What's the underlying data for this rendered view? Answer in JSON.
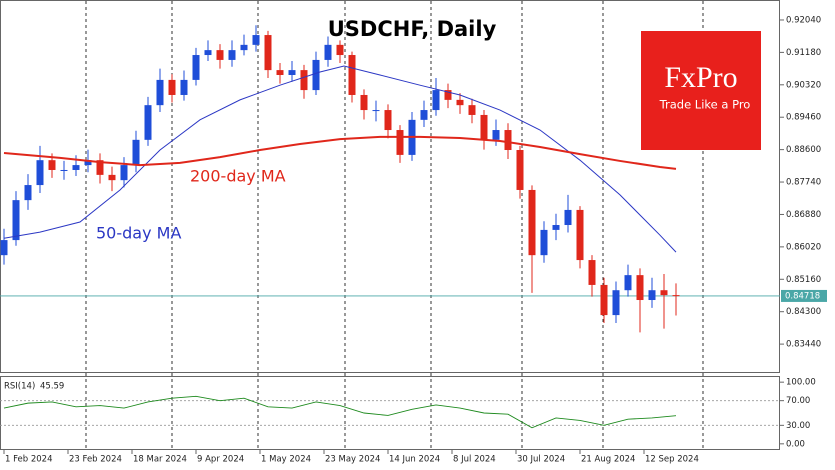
{
  "chart_data": {
    "type": "candlestick",
    "title": "USDCHF, Daily",
    "up_color": "#1f4ed8",
    "down_color": "#e0271b",
    "x": [
      0,
      3,
      6,
      9,
      12,
      15,
      18,
      21,
      24,
      27,
      30,
      33,
      36,
      39,
      42,
      45,
      48,
      51,
      54,
      57,
      60,
      63,
      66,
      69,
      72,
      75,
      78,
      81,
      84,
      87,
      90,
      93,
      96,
      99,
      102,
      105,
      108,
      111,
      114,
      117,
      120,
      123,
      126,
      129,
      132,
      135,
      138,
      141,
      144,
      147,
      150,
      153,
      156,
      159,
      162,
      165,
      168
    ],
    "open": [
      0.858,
      0.862,
      0.8726,
      0.8766,
      0.8832,
      0.8806,
      0.8806,
      0.8819,
      0.8832,
      0.8793,
      0.8779,
      0.8819,
      0.8886,
      0.8978,
      0.9045,
      0.9005,
      0.9045,
      0.9111,
      0.9124,
      0.9098,
      0.9124,
      0.9138,
      0.9164,
      0.9071,
      0.9058,
      0.9071,
      0.9018,
      0.9098,
      0.9138,
      0.9111,
      0.9005,
      0.8965,
      0.8965,
      0.8912,
      0.8846,
      0.8939,
      0.8965,
      0.9018,
      0.8992,
      0.8978,
      0.8952,
      0.8886,
      0.8912,
      0.8859,
      0.8753,
      0.858,
      0.8647,
      0.866,
      0.87,
      0.8567,
      0.8501,
      0.8421,
      0.8487,
      0.8527,
      0.8461,
      0.8487,
      0.8474
    ],
    "high": [
      0.865,
      0.875,
      0.8795,
      0.887,
      0.885,
      0.883,
      0.8845,
      0.886,
      0.885,
      0.8815,
      0.884,
      0.891,
      0.9,
      0.9075,
      0.906,
      0.907,
      0.913,
      0.915,
      0.914,
      0.915,
      0.9165,
      0.919,
      0.9175,
      0.909,
      0.9095,
      0.9085,
      0.912,
      0.916,
      0.915,
      0.912,
      0.902,
      0.899,
      0.898,
      0.8925,
      0.896,
      0.899,
      0.905,
      0.9035,
      0.901,
      0.8995,
      0.8965,
      0.894,
      0.893,
      0.887,
      0.8765,
      0.867,
      0.869,
      0.874,
      0.871,
      0.858,
      0.852,
      0.851,
      0.8555,
      0.8545,
      0.852,
      0.853,
      0.8505
    ],
    "low": [
      0.8555,
      0.8605,
      0.87,
      0.8745,
      0.8785,
      0.878,
      0.879,
      0.88,
      0.877,
      0.875,
      0.876,
      0.88,
      0.887,
      0.896,
      0.8985,
      0.899,
      0.903,
      0.9095,
      0.9075,
      0.908,
      0.911,
      0.912,
      0.905,
      0.9035,
      0.904,
      0.8995,
      0.9005,
      0.908,
      0.909,
      0.8985,
      0.894,
      0.8935,
      0.889,
      0.8825,
      0.883,
      0.892,
      0.895,
      0.897,
      0.8955,
      0.893,
      0.886,
      0.887,
      0.8835,
      0.873,
      0.848,
      0.856,
      0.862,
      0.864,
      0.8545,
      0.847,
      0.84,
      0.84,
      0.847,
      0.8375,
      0.844,
      0.8385,
      0.842
    ],
    "close": [
      0.862,
      0.8726,
      0.8766,
      0.8832,
      0.8806,
      0.8806,
      0.8819,
      0.8832,
      0.8793,
      0.8779,
      0.8819,
      0.8886,
      0.8978,
      0.9045,
      0.9005,
      0.9045,
      0.9111,
      0.9124,
      0.9098,
      0.9124,
      0.9138,
      0.9164,
      0.9071,
      0.9058,
      0.9071,
      0.9018,
      0.9098,
      0.9138,
      0.9111,
      0.9005,
      0.8965,
      0.8965,
      0.8912,
      0.8846,
      0.8939,
      0.8965,
      0.9018,
      0.8992,
      0.8978,
      0.8952,
      0.8886,
      0.8912,
      0.8859,
      0.8753,
      0.858,
      0.8647,
      0.866,
      0.87,
      0.8567,
      0.8501,
      0.8421,
      0.8487,
      0.8527,
      0.8461,
      0.8487,
      0.8474,
      0.84718
    ],
    "series": [
      {
        "name": "50-day MA",
        "color": "#2b37c4",
        "x": [
          0,
          9,
          19,
          29,
          39,
          49,
          59,
          69,
          79,
          85,
          94,
          104,
          114,
          124,
          134,
          144,
          154,
          164,
          168
        ],
        "values": [
          0.8625,
          0.8641,
          0.8668,
          0.8753,
          0.8859,
          0.8939,
          0.8992,
          0.9031,
          0.9066,
          0.9082,
          0.9058,
          0.9031,
          0.9005,
          0.8965,
          0.8912,
          0.8832,
          0.874,
          0.8633,
          0.8588
        ]
      },
      {
        "name": "200-day MA",
        "color": "#e0271b",
        "x": [
          0,
          14,
          24,
          34,
          44,
          54,
          64,
          74,
          84,
          94,
          104,
          114,
          124,
          134,
          144,
          154,
          164,
          168
        ],
        "values": [
          0.8851,
          0.8838,
          0.8827,
          0.8819,
          0.8825,
          0.884,
          0.8859,
          0.8875,
          0.8888,
          0.8894,
          0.8894,
          0.8891,
          0.8883,
          0.8867,
          0.8848,
          0.883,
          0.8814,
          0.8809
        ]
      }
    ],
    "current_price": {
      "value": 0.84718,
      "label": "0.84718"
    },
    "xlim": [
      -1,
      194
    ],
    "xticks": [
      {
        "value": 0,
        "label": "1 Feb 2024"
      },
      {
        "value": 16,
        "label": "23 Feb 2024"
      },
      {
        "value": 32,
        "label": "18 Mar 2024"
      },
      {
        "value": 48,
        "label": "9 Apr 2024"
      },
      {
        "value": 64,
        "label": "1 May 2024"
      },
      {
        "value": 80,
        "label": "23 May 2024"
      },
      {
        "value": 96,
        "label": "14 Jun 2024"
      },
      {
        "value": 112,
        "label": "8 Jul 2024"
      },
      {
        "value": 128,
        "label": "30 Jul 2024"
      },
      {
        "value": 144,
        "label": "21 Aug 2024"
      },
      {
        "value": 160,
        "label": "12 Sep 2024"
      }
    ],
    "ylim": [
      0.827,
      0.9257
    ],
    "yticks": [
      {
        "value": 0.9204,
        "label": "0.92040"
      },
      {
        "value": 0.9118,
        "label": "0.91180"
      },
      {
        "value": 0.9032,
        "label": "0.90320"
      },
      {
        "value": 0.8946,
        "label": "0.89460"
      },
      {
        "value": 0.886,
        "label": "0.88600"
      },
      {
        "value": 0.8774,
        "label": "0.87740"
      },
      {
        "value": 0.8688,
        "label": "0.86880"
      },
      {
        "value": 0.8602,
        "label": "0.86020"
      },
      {
        "value": 0.8516,
        "label": "0.85160"
      },
      {
        "value": 0.843,
        "label": "0.84300"
      },
      {
        "value": 0.8344,
        "label": "0.83440"
      }
    ],
    "rsi": {
      "label": "RSI(14)",
      "color": "#1e8a1e",
      "x": [
        0,
        6,
        12,
        18,
        24,
        30,
        36,
        42,
        48,
        54,
        60,
        66,
        72,
        78,
        84,
        90,
        96,
        102,
        108,
        114,
        120,
        126,
        132,
        138,
        144,
        150,
        156,
        162,
        168
      ],
      "values": [
        58,
        66,
        68,
        60,
        62,
        58,
        68,
        74,
        77,
        70,
        74,
        60,
        58,
        68,
        62,
        50,
        46,
        56,
        63,
        58,
        50,
        48,
        26,
        42,
        38,
        30,
        40,
        42,
        45.59
      ],
      "ylim": [
        -10,
        110
      ],
      "yticks": [
        {
          "value": 100,
          "label": "100.00"
        },
        {
          "value": 70,
          "label": "70.00"
        },
        {
          "value": 30,
          "label": "30.00"
        },
        {
          "value": 0,
          "label": "0.00"
        }
      ]
    }
  },
  "logo": {
    "brand": "FxPro",
    "tagline": "Trade Like a Pro"
  }
}
